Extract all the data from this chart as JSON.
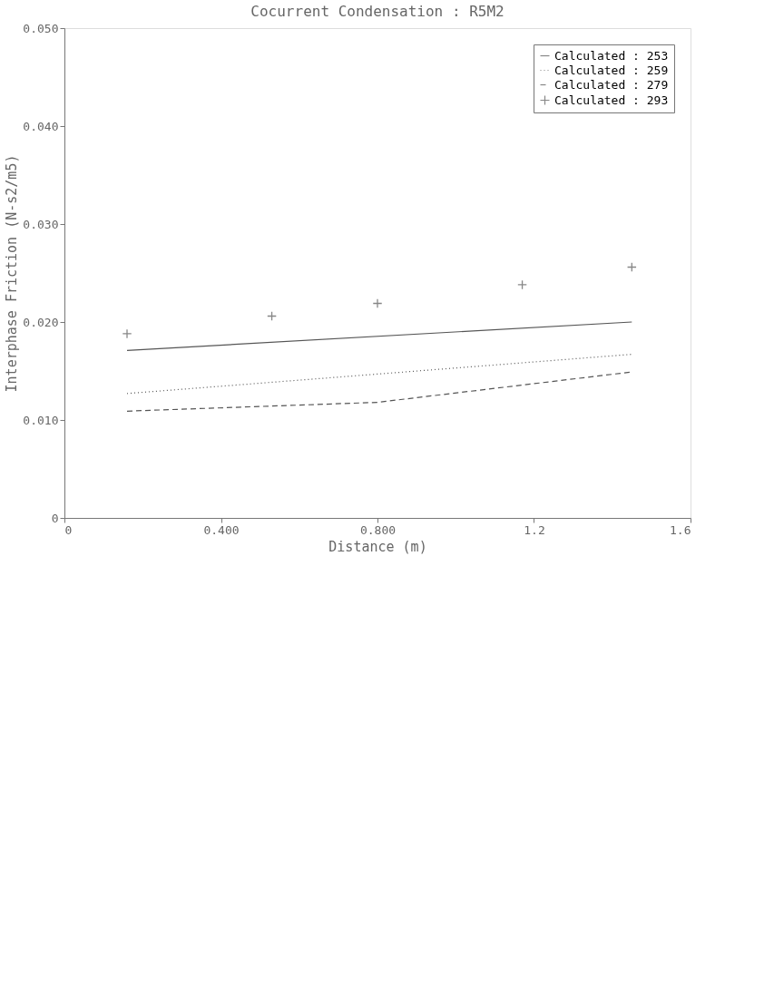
{
  "chart_data": {
    "type": "line",
    "title": "Cocurrent Condensation : R5M2",
    "xlabel": "Distance (m)",
    "ylabel": "Interphase Friction (N-s2/m5)",
    "xlim": [
      0,
      1.6
    ],
    "ylim": [
      0,
      0.05
    ],
    "xticks": [
      0,
      {
        "value": 0.4,
        "label": "0.400"
      },
      {
        "value": 0.8,
        "label": "0.800"
      },
      {
        "value": 1.2,
        "label": "1.2"
      },
      {
        "value": 1.6,
        "label": "1.6"
      }
    ],
    "yticks": [
      0,
      {
        "value": 0.01,
        "label": "0.010"
      },
      {
        "value": 0.02,
        "label": "0.020"
      },
      {
        "value": 0.03,
        "label": "0.030"
      },
      {
        "value": 0.04,
        "label": "0.040"
      },
      {
        "value": 0.05,
        "label": "0.050"
      }
    ],
    "grid": false,
    "legend": "top right",
    "series": [
      {
        "name": "Calculated : 253",
        "line_style": "solid",
        "color": "#555555",
        "x": [
          0.16,
          1.45
        ],
        "values": [
          0.0171,
          0.02
        ]
      },
      {
        "name": "Calculated : 259",
        "line_style": "dotted",
        "color": "#555555",
        "x": [
          0.16,
          1.45
        ],
        "values": [
          0.0127,
          0.0167
        ]
      },
      {
        "name": "Calculated : 279",
        "line_style": "dashed",
        "color": "#555555",
        "x": [
          0.16,
          0.8,
          1.45
        ],
        "values": [
          0.0109,
          0.0118,
          0.0149
        ]
      },
      {
        "name": "Calculated : 293",
        "type": "scatter",
        "marker": "cross",
        "color": "#555555",
        "x": [
          0.16,
          0.53,
          0.8,
          1.17,
          1.45
        ],
        "values": [
          0.0188,
          0.0206,
          0.0219,
          0.0238,
          0.0256
        ]
      }
    ]
  }
}
